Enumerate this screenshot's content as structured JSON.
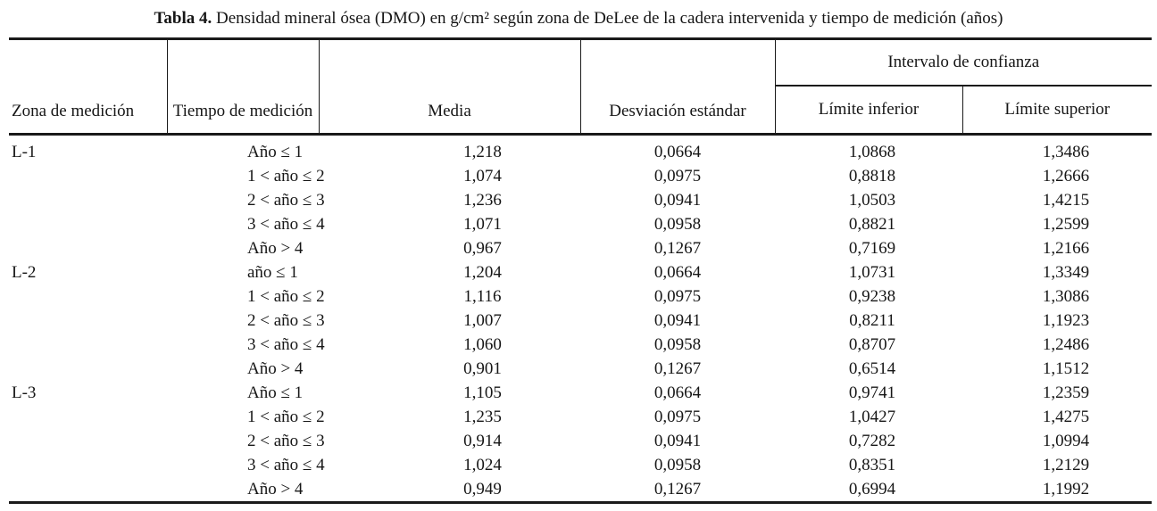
{
  "table": {
    "title_bold": "Tabla 4.",
    "title_rest": " Densidad mineral ósea (DMO) en g/cm² según zona de DeLee de la cadera intervenida y tiempo de medición (años)",
    "headers": {
      "zona": "Zona de medición",
      "tiempo": "Tiempo de medición",
      "media": "Media",
      "desviacion": "Desviación estándar",
      "intervalo": "Intervalo de confianza",
      "limite_inferior": "Límite inferior",
      "limite_superior": "Límite superior"
    },
    "rows": [
      {
        "zona": "L-1",
        "tiempo": "Año ≤ 1",
        "media": "1,218",
        "de": "0,0664",
        "li": "1,0868",
        "ls": "1,3486"
      },
      {
        "zona": "",
        "tiempo": "1 < año ≤ 2",
        "media": "1,074",
        "de": "0,0975",
        "li": "0,8818",
        "ls": "1,2666"
      },
      {
        "zona": "",
        "tiempo": "2 < año ≤ 3",
        "media": "1,236",
        "de": "0,0941",
        "li": "1,0503",
        "ls": "1,4215"
      },
      {
        "zona": "",
        "tiempo": "3 < año ≤ 4",
        "media": "1,071",
        "de": "0,0958",
        "li": "0,8821",
        "ls": "1,2599"
      },
      {
        "zona": "",
        "tiempo": "Año > 4",
        "media": "0,967",
        "de": "0,1267",
        "li": "0,7169",
        "ls": "1,2166"
      },
      {
        "zona": "L-2",
        "tiempo": "año ≤ 1",
        "media": "1,204",
        "de": "0,0664",
        "li": "1,0731",
        "ls": "1,3349"
      },
      {
        "zona": "",
        "tiempo": "1 < año ≤ 2",
        "media": "1,116",
        "de": "0,0975",
        "li": "0,9238",
        "ls": "1,3086"
      },
      {
        "zona": "",
        "tiempo": "2 < año ≤ 3",
        "media": "1,007",
        "de": "0,0941",
        "li": "0,8211",
        "ls": "1,1923"
      },
      {
        "zona": "",
        "tiempo": "3 < año ≤ 4",
        "media": "1,060",
        "de": "0,0958",
        "li": "0,8707",
        "ls": "1,2486"
      },
      {
        "zona": "",
        "tiempo": "Año > 4",
        "media": "0,901",
        "de": "0,1267",
        "li": "0,6514",
        "ls": "1,1512"
      },
      {
        "zona": "L-3",
        "tiempo": "Año ≤ 1",
        "media": "1,105",
        "de": "0,0664",
        "li": "0,9741",
        "ls": "1,2359"
      },
      {
        "zona": "",
        "tiempo": "1 < año ≤ 2",
        "media": "1,235",
        "de": "0,0975",
        "li": "1,0427",
        "ls": "1,4275"
      },
      {
        "zona": "",
        "tiempo": "2 < año ≤ 3",
        "media": "0,914",
        "de": "0,0941",
        "li": "0,7282",
        "ls": "1,0994"
      },
      {
        "zona": "",
        "tiempo": "3 < año ≤ 4",
        "media": "1,024",
        "de": "0,0958",
        "li": "0,8351",
        "ls": "1,2129"
      },
      {
        "zona": "",
        "tiempo": "Año > 4",
        "media": "0,949",
        "de": "0,1267",
        "li": "0,6994",
        "ls": "1,1992"
      }
    ]
  }
}
